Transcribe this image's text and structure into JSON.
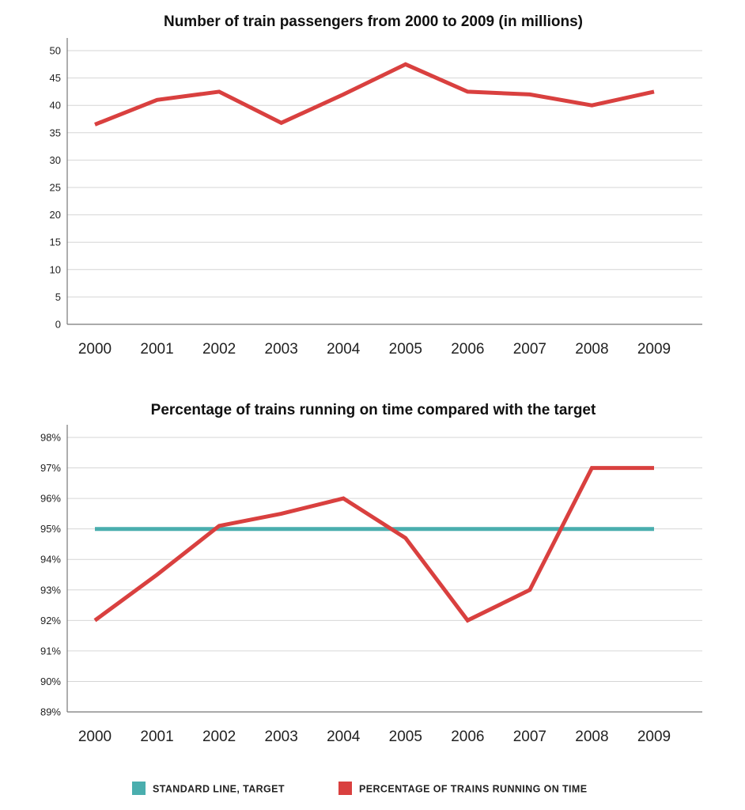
{
  "chart_data": [
    {
      "type": "line",
      "title": "Number of train passengers from 2000 to 2009 (in millions)",
      "xlabel": "",
      "ylabel": "",
      "categories": [
        "2000",
        "2001",
        "2002",
        "2003",
        "2004",
        "2005",
        "2006",
        "2007",
        "2008",
        "2009"
      ],
      "ylim": [
        0,
        50
      ],
      "yticks": [
        0,
        5,
        10,
        15,
        20,
        25,
        30,
        35,
        40,
        45,
        50
      ],
      "ytick_labels": [
        "0",
        "5",
        "10",
        "15",
        "20",
        "25",
        "30",
        "35",
        "40",
        "45",
        "50"
      ],
      "grid": true,
      "series": [
        {
          "values": [
            36.5,
            41,
            42.5,
            36.8,
            42,
            47.5,
            42.5,
            42,
            40,
            42.5
          ],
          "color": "#d9403f"
        }
      ]
    },
    {
      "type": "line",
      "title": "Percentage of trains running on time compared with the target",
      "xlabel": "",
      "ylabel": "",
      "categories": [
        "2000",
        "2001",
        "2002",
        "2003",
        "2004",
        "2005",
        "2006",
        "2007",
        "2008",
        "2009"
      ],
      "ylim": [
        89,
        98
      ],
      "yticks": [
        89,
        90,
        91,
        92,
        93,
        94,
        95,
        96,
        97,
        98
      ],
      "ytick_labels": [
        "89%",
        "90%",
        "91%",
        "92%",
        "93%",
        "94%",
        "95%",
        "96%",
        "97%",
        "98%"
      ],
      "grid": true,
      "legend_position": "bottom",
      "series": [
        {
          "name": "STANDARD LINE, TARGET",
          "values": [
            95,
            95,
            95,
            95,
            95,
            95,
            95,
            95,
            95,
            95
          ],
          "color": "#4aaeae"
        },
        {
          "name": "PERCENTAGE OF TRAINS RUNNING ON TIME",
          "values": [
            92,
            93.5,
            95.1,
            95.5,
            96,
            94.7,
            92,
            93,
            97,
            97
          ],
          "color": "#d9403f"
        }
      ]
    }
  ]
}
